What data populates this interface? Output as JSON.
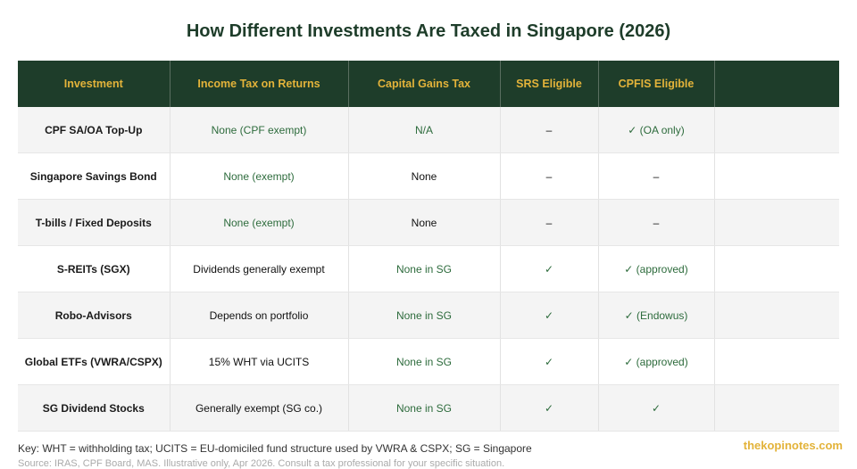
{
  "title": "How Different Investments Are Taxed in Singapore (2026)",
  "table": {
    "header": [
      "Investment",
      "Income Tax on Returns",
      "Capital Gains Tax",
      "SRS Eligible",
      "CPFIS Eligible"
    ],
    "rows": [
      [
        "CPF SA/OA Top-Up",
        "None (CPF exempt)",
        "N/A",
        "–",
        "✓ (OA only)"
      ],
      [
        "Singapore Savings Bond",
        "None (exempt)",
        "None",
        "–",
        "–"
      ],
      [
        "T-bills / Fixed Deposits",
        "None (exempt)",
        "None",
        "–",
        "–"
      ],
      [
        "S-REITs (SGX)",
        "Dividends generally exempt",
        "None in SG",
        "✓",
        "✓ (approved)"
      ],
      [
        "Robo-Advisors",
        "Depends on portfolio",
        "None in SG",
        "✓",
        "✓ (Endowus)"
      ],
      [
        "Global ETFs (VWRA/CSPX)",
        "15% WHT via UCITS",
        "None in SG",
        "✓",
        "✓ (approved)"
      ],
      [
        "SG Dividend Stocks",
        "Generally exempt (SG co.)",
        "None in SG",
        "✓",
        "✓"
      ]
    ]
  },
  "key": "Key: WHT = withholding tax; UCITS = EU-domiciled fund structure used by VWRA & CSPX; SG = Singapore",
  "source": "Source: IRAS, CPF Board, MAS. Illustrative only, Apr 2026. Consult a tax professional for your specific situation.",
  "watermark": "thekopinotes.com"
}
